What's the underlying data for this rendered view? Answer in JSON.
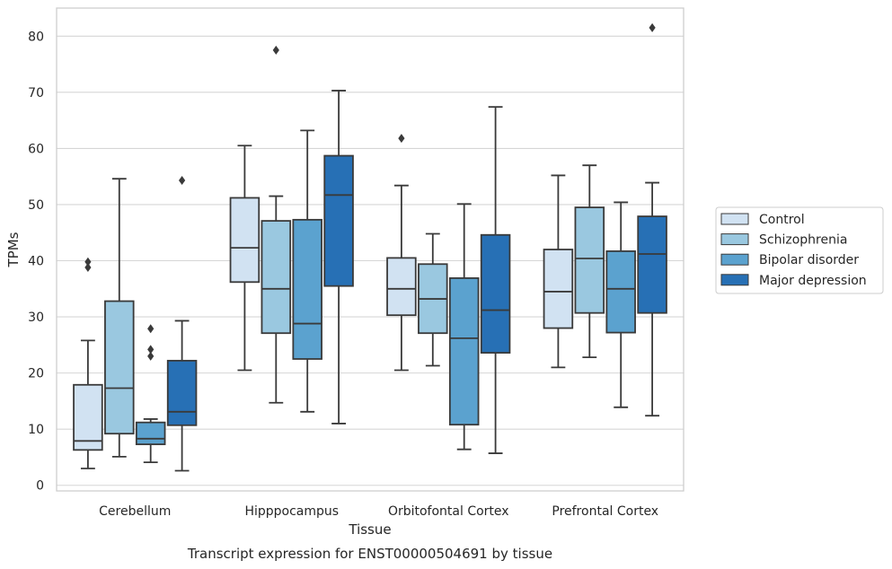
{
  "chart_data": {
    "type": "box",
    "caption": "Transcript expression for ENST00000504691 by tissue",
    "xlabel": "Tissue",
    "ylabel": "TPMs",
    "ylim": [
      -1,
      85
    ],
    "yticks": [
      0,
      10,
      20,
      30,
      40,
      50,
      60,
      70,
      80
    ],
    "grid": "horizontal",
    "legend_position": "right",
    "categories": [
      "Cerebellum",
      "Hipppocampus",
      "Orbitofontal Cortex",
      "Prefrontal Cortex"
    ],
    "series": [
      {
        "name": "Control",
        "color": "#d1e2f2",
        "boxes": [
          {
            "whislo": 3.0,
            "q1": 6.3,
            "med": 7.9,
            "q3": 17.9,
            "whishi": 25.8,
            "fliers": [
              38.8,
              39.8
            ]
          },
          {
            "whislo": 20.5,
            "q1": 36.2,
            "med": 42.3,
            "q3": 51.2,
            "whishi": 60.5,
            "fliers": []
          },
          {
            "whislo": 20.5,
            "q1": 30.3,
            "med": 35.0,
            "q3": 40.5,
            "whishi": 53.4,
            "fliers": [
              61.8
            ]
          },
          {
            "whislo": 21.0,
            "q1": 28.0,
            "med": 34.5,
            "q3": 42.0,
            "whishi": 55.2,
            "fliers": []
          }
        ]
      },
      {
        "name": "Schizophrenia",
        "color": "#9ac8e0",
        "boxes": [
          {
            "whislo": 5.1,
            "q1": 9.2,
            "med": 17.3,
            "q3": 32.8,
            "whishi": 54.6,
            "fliers": []
          },
          {
            "whislo": 14.7,
            "q1": 27.1,
            "med": 35.0,
            "q3": 47.1,
            "whishi": 51.5,
            "fliers": [
              77.5
            ]
          },
          {
            "whislo": 21.3,
            "q1": 27.1,
            "med": 33.2,
            "q3": 39.4,
            "whishi": 44.8,
            "fliers": []
          },
          {
            "whislo": 22.8,
            "q1": 30.7,
            "med": 40.4,
            "q3": 49.5,
            "whishi": 57.0,
            "fliers": []
          }
        ]
      },
      {
        "name": "Bipolar disorder",
        "color": "#5ba2cf",
        "boxes": [
          {
            "whislo": 4.1,
            "q1": 7.3,
            "med": 8.3,
            "q3": 11.2,
            "whishi": 11.8,
            "fliers": [
              23.0,
              24.2,
              27.9
            ]
          },
          {
            "whislo": 13.1,
            "q1": 22.5,
            "med": 28.8,
            "q3": 47.3,
            "whishi": 63.2,
            "fliers": []
          },
          {
            "whislo": 6.4,
            "q1": 10.8,
            "med": 26.2,
            "q3": 36.9,
            "whishi": 50.1,
            "fliers": []
          },
          {
            "whislo": 13.9,
            "q1": 27.2,
            "med": 35.0,
            "q3": 41.7,
            "whishi": 50.4,
            "fliers": []
          }
        ]
      },
      {
        "name": "Major depression",
        "color": "#2770b5",
        "boxes": [
          {
            "whislo": 2.6,
            "q1": 10.7,
            "med": 13.1,
            "q3": 22.2,
            "whishi": 29.3,
            "fliers": [
              54.3
            ]
          },
          {
            "whislo": 11.0,
            "q1": 35.5,
            "med": 51.7,
            "q3": 58.7,
            "whishi": 70.3,
            "fliers": []
          },
          {
            "whislo": 5.7,
            "q1": 23.6,
            "med": 31.2,
            "q3": 44.6,
            "whishi": 67.4,
            "fliers": []
          },
          {
            "whislo": 12.4,
            "q1": 30.7,
            "med": 41.2,
            "q3": 47.9,
            "whishi": 53.9,
            "fliers": [
              81.5
            ]
          }
        ]
      }
    ]
  }
}
